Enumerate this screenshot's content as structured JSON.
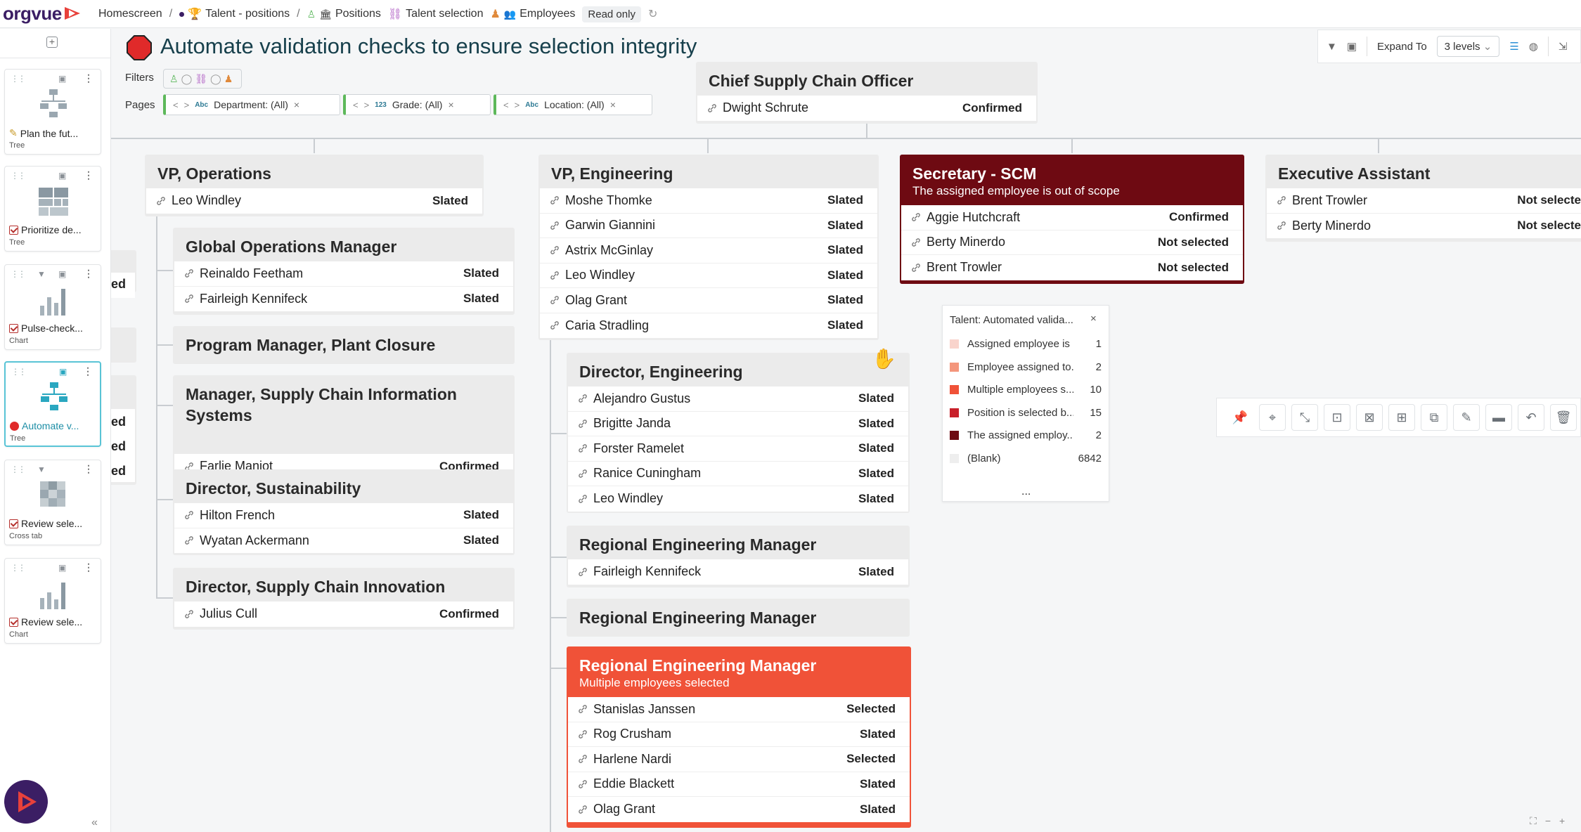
{
  "app": {
    "logo": "orgvue"
  },
  "breadcrumb": {
    "items": [
      "Homescreen",
      "Talent - positions",
      "Positions",
      "Talent selection",
      "Employees"
    ],
    "read_only": "Read only"
  },
  "sidebar": {
    "cards": [
      {
        "title": "Plan the fut...",
        "type": "Tree"
      },
      {
        "title": "Prioritize de...",
        "type": "Tree"
      },
      {
        "title": "Pulse-check...",
        "type": "Chart"
      },
      {
        "title": "Automate v...",
        "type": "Tree"
      },
      {
        "title": "Review sele...",
        "type": "Cross tab"
      },
      {
        "title": "Review sele...",
        "type": "Chart"
      }
    ]
  },
  "page": {
    "title": "Automate validation checks to ensure selection integrity"
  },
  "filters": {
    "label": "Filters"
  },
  "pages": {
    "label": "Pages",
    "items": [
      {
        "type": "Abc",
        "label": "Department: (All)"
      },
      {
        "type": "123",
        "label": "Grade: (All)"
      },
      {
        "type": "Abc",
        "label": "Location: (All)"
      }
    ]
  },
  "toolbar": {
    "expand_to": "Expand To",
    "levels": "3 levels"
  },
  "org": {
    "root": {
      "title": "Chief Supply Chain Officer",
      "rows": [
        {
          "name": "Dwight Schrute",
          "status": "Confirmed"
        }
      ]
    },
    "vp_ops": {
      "title": "VP, Operations",
      "rows": [
        {
          "name": "Leo Windley",
          "status": "Slated"
        }
      ]
    },
    "gom": {
      "title": "Global Operations Manager",
      "rows": [
        {
          "name": "Reinaldo Feetham",
          "status": "Slated"
        },
        {
          "name": "Fairleigh Kennifeck",
          "status": "Slated"
        }
      ]
    },
    "pmpc": {
      "title": "Program Manager, Plant Closure"
    },
    "mscis": {
      "title1": "Manager, Supply Chain Information",
      "title2": "Systems",
      "rows": [
        {
          "name": "Farlie Manjot",
          "status": "Confirmed"
        }
      ]
    },
    "dsus": {
      "title": "Director, Sustainability",
      "rows": [
        {
          "name": "Hilton French",
          "status": "Slated"
        },
        {
          "name": "Wyatan Ackermann",
          "status": "Slated"
        }
      ]
    },
    "dsci": {
      "title": "Director, Supply Chain Innovation",
      "rows": [
        {
          "name": "Julius Cull",
          "status": "Confirmed"
        }
      ]
    },
    "vp_eng": {
      "title": "VP, Engineering",
      "rows": [
        {
          "name": "Moshe Thomke",
          "status": "Slated"
        },
        {
          "name": "Garwin Giannini",
          "status": "Slated"
        },
        {
          "name": "Astrix McGinlay",
          "status": "Slated"
        },
        {
          "name": "Leo Windley",
          "status": "Slated"
        },
        {
          "name": "Olag Grant",
          "status": "Slated"
        },
        {
          "name": "Caria Stradling",
          "status": "Slated"
        }
      ]
    },
    "deng": {
      "title": "Director, Engineering",
      "rows": [
        {
          "name": "Alejandro Gustus",
          "status": "Slated"
        },
        {
          "name": "Brigitte Janda",
          "status": "Slated"
        },
        {
          "name": "Forster Ramelet",
          "status": "Slated"
        },
        {
          "name": "Ranice Cuningham",
          "status": "Slated"
        },
        {
          "name": "Leo Windley",
          "status": "Slated"
        }
      ]
    },
    "rem1": {
      "title": "Regional Engineering Manager",
      "rows": [
        {
          "name": "Fairleigh Kennifeck",
          "status": "Slated"
        }
      ]
    },
    "rem2": {
      "title": "Regional Engineering Manager"
    },
    "rem3": {
      "title": "Regional Engineering Manager",
      "subtitle": "Multiple employees selected",
      "rows": [
        {
          "name": "Stanislas Janssen",
          "status": "Selected"
        },
        {
          "name": "Rog Crusham",
          "status": "Slated"
        },
        {
          "name": "Harlene Nardi",
          "status": "Selected"
        },
        {
          "name": "Eddie Blackett",
          "status": "Slated"
        },
        {
          "name": "Olag Grant",
          "status": "Slated"
        }
      ]
    },
    "sec": {
      "title": "Secretary - SCM",
      "subtitle": "The assigned employee is out of scope",
      "rows": [
        {
          "name": "Aggie Hutchcraft",
          "status": "Confirmed"
        },
        {
          "name": "Berty Minerdo",
          "status": "Not selected"
        },
        {
          "name": "Brent Trowler",
          "status": "Not selected"
        }
      ]
    },
    "ea": {
      "title": "Executive Assistant",
      "rows": [
        {
          "name": "Brent Trowler",
          "status": "Not selecte"
        },
        {
          "name": "Berty Minerdo",
          "status": "Not selecte"
        }
      ]
    },
    "clipped": [
      "ed",
      "ed",
      "ed",
      "ed"
    ]
  },
  "legend": {
    "title": "Talent: Automated valida...",
    "items": [
      {
        "label": "Assigned employee is ...",
        "count": "1",
        "color": "#f9d4cc"
      },
      {
        "label": "Employee assigned to...",
        "count": "2",
        "color": "#f4967c"
      },
      {
        "label": "Multiple employees s...",
        "count": "10",
        "color": "#f05238"
      },
      {
        "label": "Position is selected b...",
        "count": "15",
        "color": "#c8202a"
      },
      {
        "label": "The assigned employ...",
        "count": "2",
        "color": "#6e0a12"
      },
      {
        "label": "(Blank)",
        "count": "6842",
        "color": "#eeeeee"
      }
    ],
    "more": "..."
  }
}
